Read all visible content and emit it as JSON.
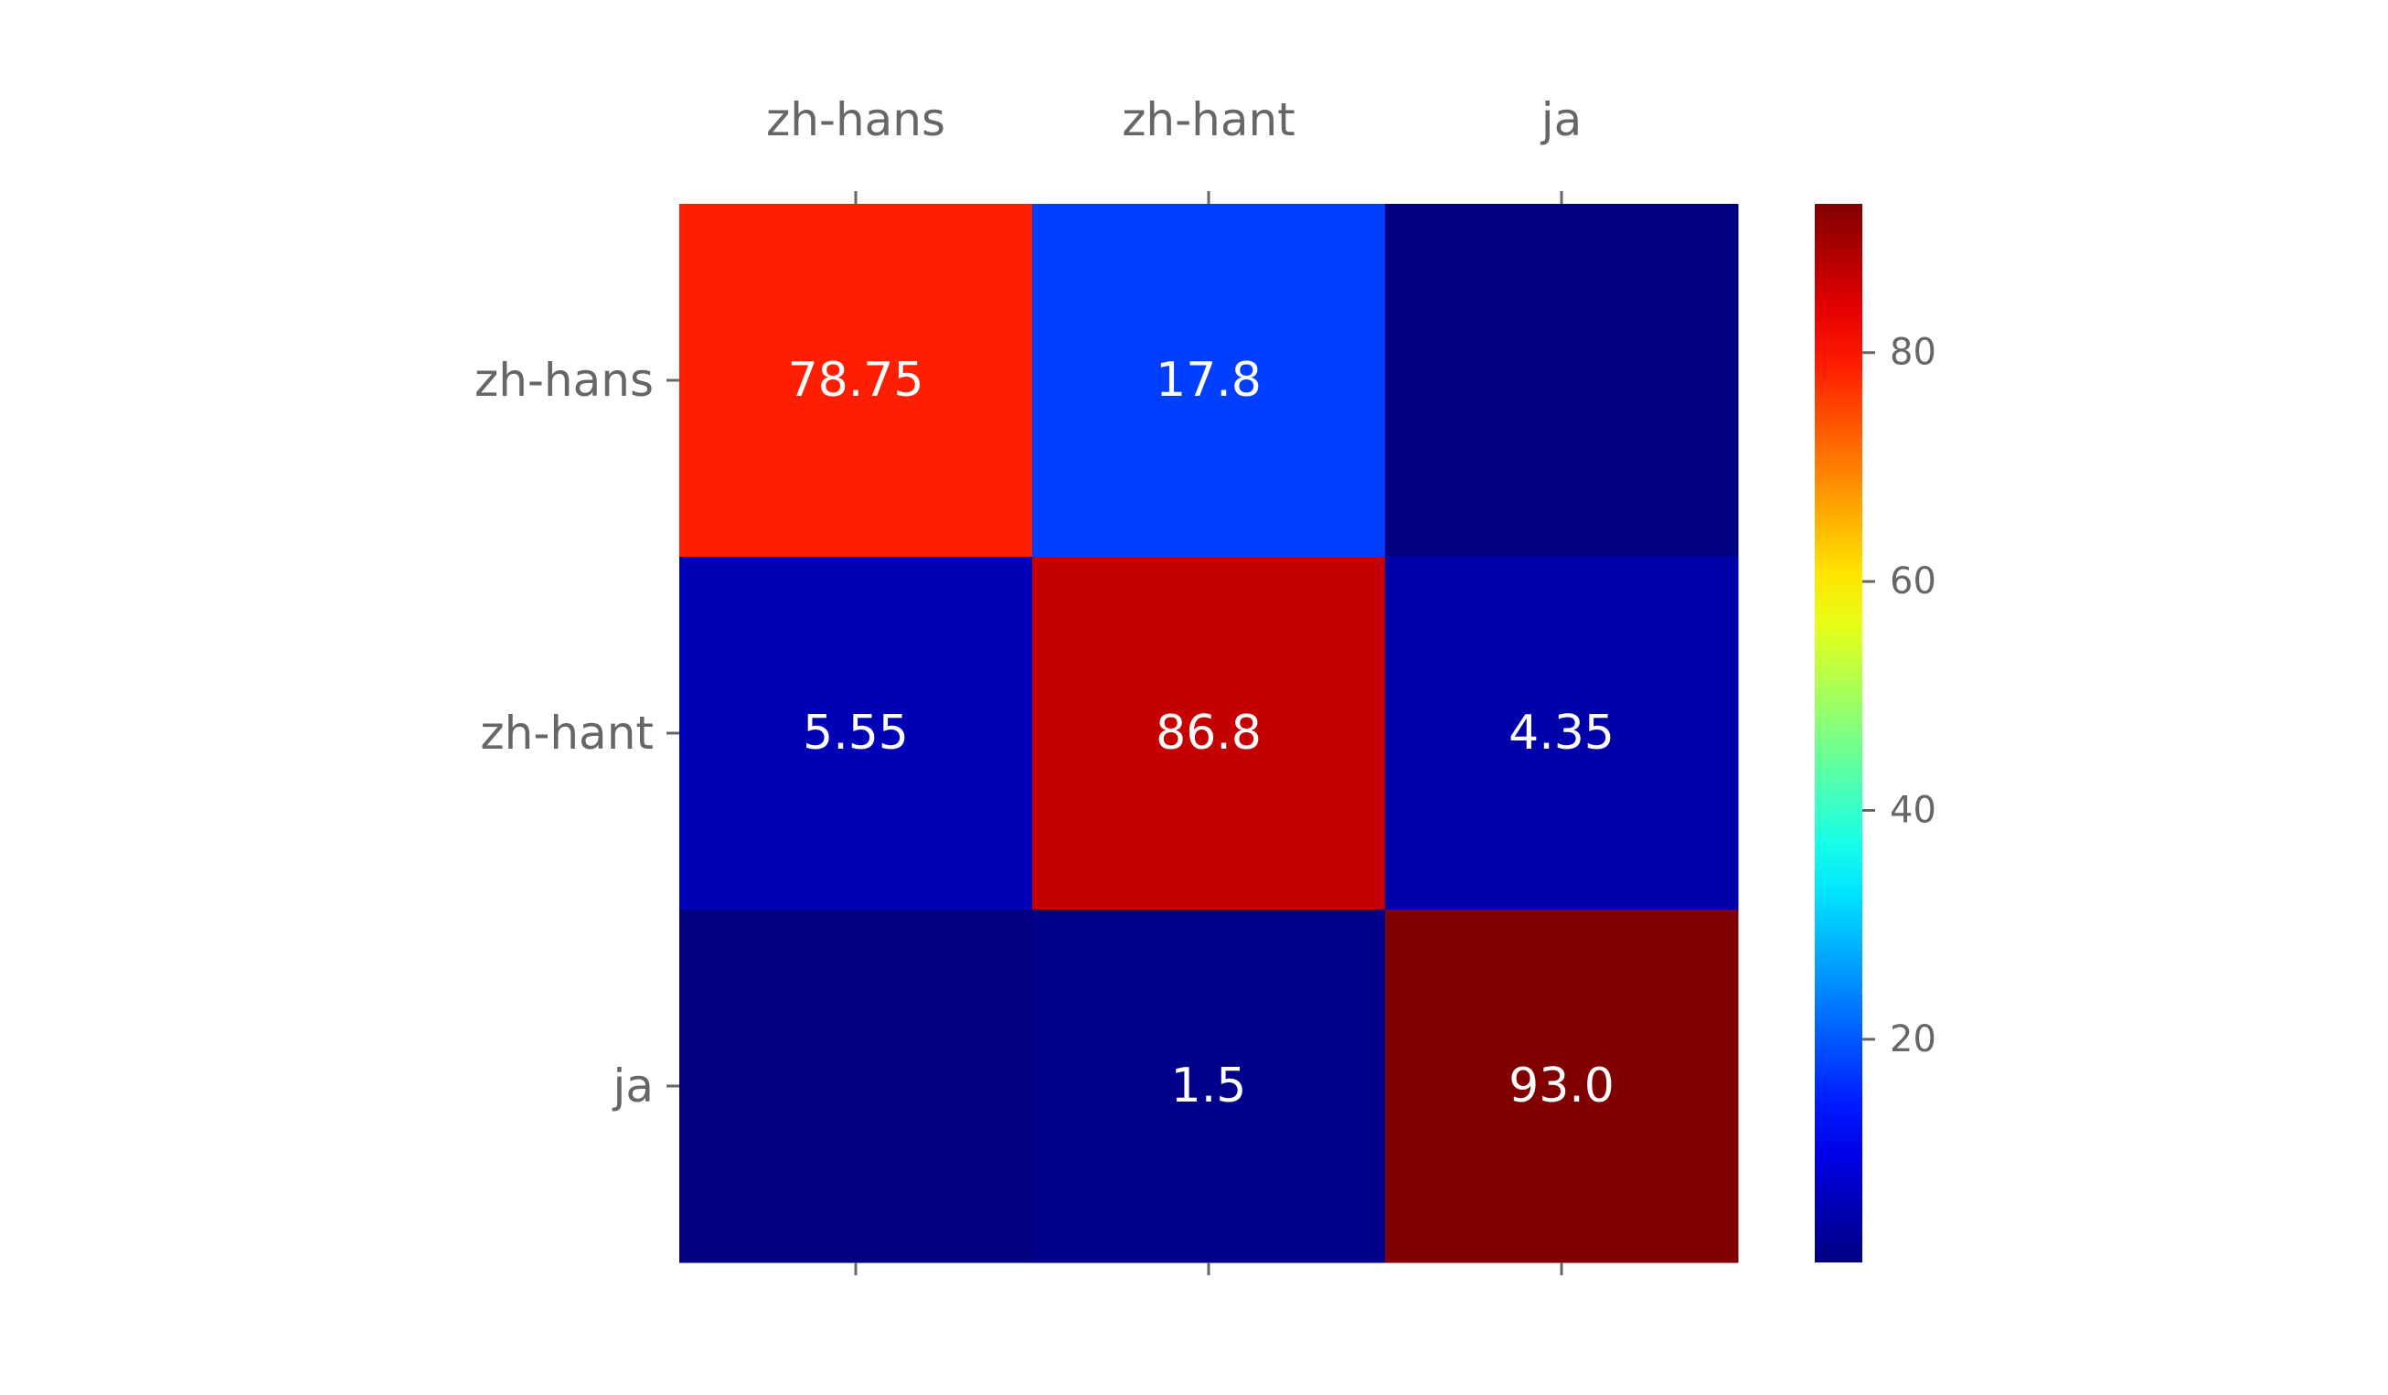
{
  "chart_data": {
    "type": "heatmap",
    "x_categories": [
      "zh-hans",
      "zh-hant",
      "ja"
    ],
    "y_categories": [
      "zh-hans",
      "zh-hant",
      "ja"
    ],
    "values": [
      [
        78.75,
        17.8,
        0.0
      ],
      [
        5.55,
        86.8,
        4.35
      ],
      [
        0.0,
        1.5,
        93.0
      ]
    ],
    "cell_labels": [
      [
        "78.75",
        "17.8",
        ""
      ],
      [
        "5.55",
        "86.8",
        "4.35"
      ],
      [
        "",
        "1.5",
        "93.0"
      ]
    ],
    "colormap": "jet",
    "color_range": [
      0.5,
      93.0
    ],
    "colorbar_ticks": [
      20,
      40,
      60,
      80
    ],
    "colorbar_tick_labels": [
      "20",
      "40",
      "60",
      "80"
    ],
    "x_tick_position": "top",
    "grid": false
  }
}
